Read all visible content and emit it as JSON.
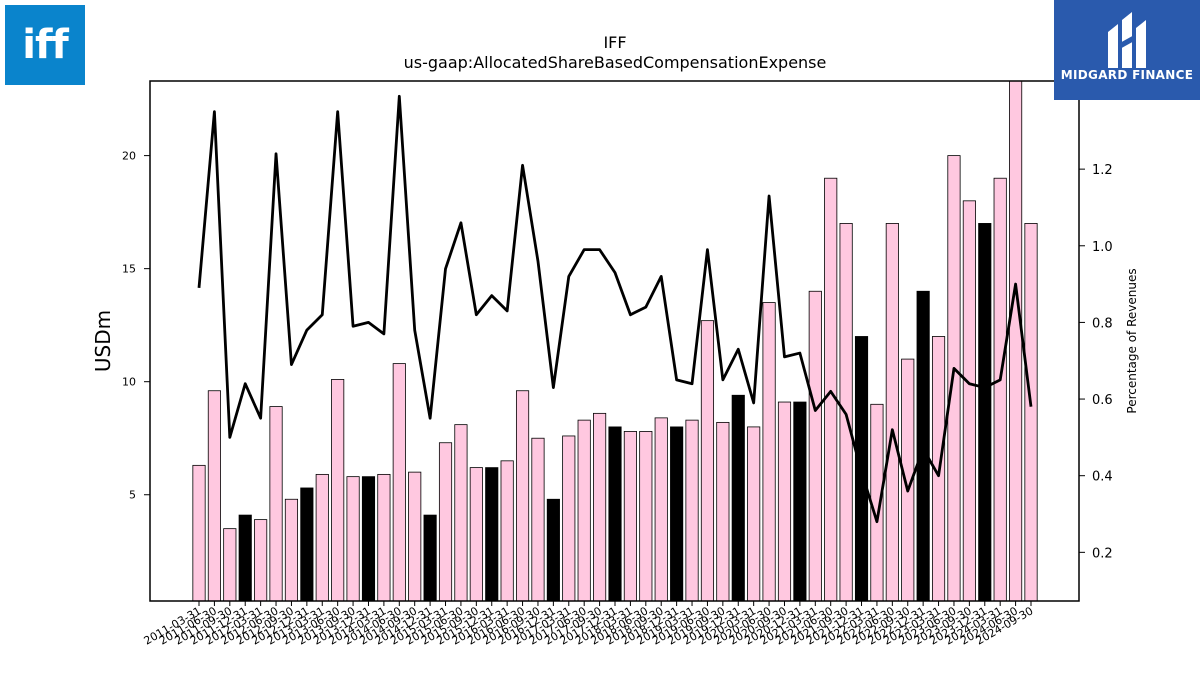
{
  "brand": {
    "left_logo": {
      "text": "iff",
      "color": "#0a84cc"
    },
    "right_logo": {
      "text": "MIDGARD FINANCE",
      "color": "#2a5aad"
    }
  },
  "chart_data": {
    "type": "bar",
    "title": "IFF",
    "subtitle": "us-gaap:AllocatedShareBasedCompensationExpense",
    "ylabel": "USDm",
    "y2label": "Percentage of Revenues",
    "ylim": [
      0.3,
      23.3
    ],
    "y2lim": [
      0.073,
      1.43
    ],
    "yticks": [
      5,
      10,
      15,
      20
    ],
    "y2ticks": [
      0.2,
      0.4,
      0.6,
      0.8,
      1.0,
      1.2
    ],
    "bar_colors": {
      "quarter": "#ffc8e0",
      "annual": "#000000"
    },
    "line_color": "#000000",
    "categories": [
      "2011-03-31",
      "2011-06-30",
      "2011-09-30",
      "2011-12-31",
      "2012-03-31",
      "2012-06-30",
      "2012-09-30",
      "2012-12-31",
      "2013-03-31",
      "2013-06-30",
      "2013-09-30",
      "2013-12-31",
      "2014-03-31",
      "2014-06-30",
      "2014-09-30",
      "2014-12-31",
      "2015-03-31",
      "2015-06-30",
      "2015-09-30",
      "2015-12-31",
      "2016-03-31",
      "2016-06-30",
      "2016-09-30",
      "2016-12-31",
      "2017-03-31",
      "2017-06-30",
      "2017-09-30",
      "2017-12-31",
      "2018-03-31",
      "2018-06-30",
      "2018-09-30",
      "2018-12-31",
      "2019-03-31",
      "2019-06-30",
      "2019-09-30",
      "2019-12-31",
      "2020-03-31",
      "2020-06-30",
      "2020-09-30",
      "2020-12-31",
      "2021-03-31",
      "2021-06-30",
      "2021-09-30",
      "2021-12-31",
      "2022-03-31",
      "2022-06-30",
      "2022-09-30",
      "2022-12-31",
      "2023-03-31",
      "2023-06-30",
      "2023-09-30",
      "2023-12-31",
      "2024-03-31",
      "2024-06-30",
      "2024-09-30"
    ],
    "values": [
      6.3,
      9.6,
      3.5,
      4.1,
      3.9,
      8.9,
      4.8,
      5.3,
      5.9,
      10.1,
      5.8,
      5.8,
      5.9,
      10.8,
      6.0,
      4.1,
      7.3,
      8.1,
      6.2,
      6.2,
      6.5,
      9.6,
      7.5,
      4.8,
      7.6,
      8.3,
      8.6,
      8.0,
      7.8,
      7.8,
      8.4,
      8.0,
      8.3,
      12.7,
      8.2,
      9.4,
      8.0,
      13.5,
      9.1,
      9.1,
      14.0,
      19.0,
      17.0,
      12.0,
      9.0,
      17.0,
      11.0,
      14.0,
      12.0,
      20.0,
      18.0,
      17.0,
      19.0,
      23.3,
      17.0
    ],
    "annual": [
      false,
      false,
      false,
      true,
      false,
      false,
      false,
      true,
      false,
      false,
      false,
      true,
      false,
      false,
      false,
      true,
      false,
      false,
      false,
      true,
      false,
      false,
      false,
      true,
      false,
      false,
      false,
      true,
      false,
      false,
      false,
      true,
      false,
      false,
      false,
      true,
      false,
      false,
      false,
      true,
      false,
      false,
      false,
      true,
      false,
      false,
      false,
      true,
      false,
      false,
      false,
      true,
      false,
      false,
      false
    ],
    "pct_revenues": [
      0.89,
      1.35,
      0.5,
      0.64,
      0.55,
      1.24,
      0.69,
      0.78,
      0.82,
      1.35,
      0.79,
      0.8,
      0.77,
      1.39,
      0.78,
      0.55,
      0.94,
      1.06,
      0.82,
      0.87,
      0.83,
      1.21,
      0.96,
      0.63,
      0.92,
      0.99,
      0.99,
      0.93,
      0.82,
      0.84,
      0.92,
      0.65,
      0.64,
      0.99,
      0.65,
      0.73,
      0.59,
      1.13,
      0.71,
      0.72,
      0.57,
      0.62,
      0.56,
      0.41,
      0.28,
      0.52,
      0.36,
      0.47,
      0.4,
      0.68,
      0.64,
      0.63,
      0.65,
      0.9,
      0.58
    ]
  }
}
